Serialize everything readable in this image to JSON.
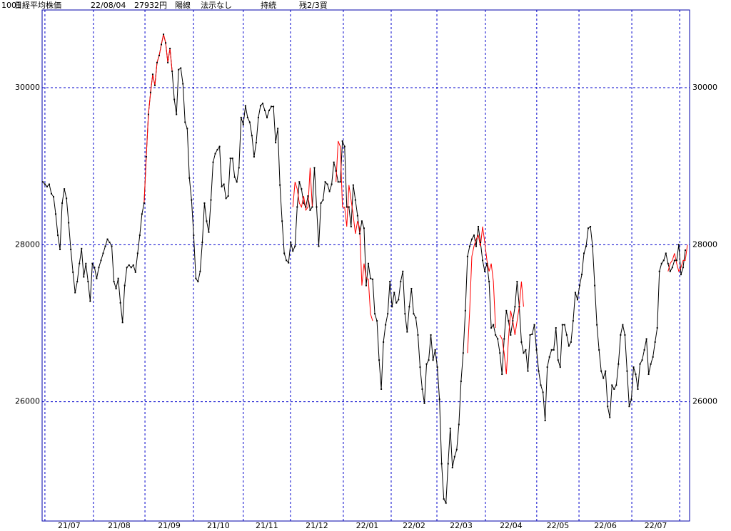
{
  "chart_data": {
    "type": "line",
    "header": {
      "code": "1001",
      "name": "日経平均株価",
      "date": "22/08/04",
      "price": "27932円",
      "candle": "陽線",
      "note": "法示なし",
      "status": "持続",
      "signal": "残2/3買"
    },
    "xlim": [
      -0.3,
      300
    ],
    "ylim": [
      24480,
      30990
    ],
    "yticks": [
      26000,
      28000,
      30000
    ],
    "xticks": [
      {
        "value": 1,
        "label": "21/07"
      },
      {
        "value": 23.5,
        "label": "21/08"
      },
      {
        "value": 47.4,
        "label": "21/09"
      },
      {
        "value": 69.9,
        "label": "21/10"
      },
      {
        "value": 93,
        "label": "21/11"
      },
      {
        "value": 114.9,
        "label": "21/12"
      },
      {
        "value": 139.4,
        "label": "22/01"
      },
      {
        "value": 161.6,
        "label": "22/02"
      },
      {
        "value": 182.8,
        "label": "22/03"
      },
      {
        "value": 205.3,
        "label": "22/04"
      },
      {
        "value": 229.1,
        "label": "22/05"
      },
      {
        "value": 248.7,
        "label": "22/06"
      },
      {
        "value": 273.2,
        "label": "22/07"
      },
      {
        "value": 295.4,
        "label": null
      }
    ],
    "grid": true,
    "grid_color": "#0000cc",
    "frame_color": "#0000aa",
    "series": [
      {
        "color": "#000000",
        "markers": true,
        "values": [
          28800,
          28770,
          28740,
          28770,
          28650,
          28610,
          28390,
          28120,
          27940,
          28530,
          28710,
          28590,
          28280,
          27940,
          27650,
          27390,
          27530,
          27760,
          27950,
          27590,
          27760,
          27530,
          27280,
          27760,
          27710,
          27570,
          27710,
          27800,
          27890,
          27980,
          28070,
          28030,
          27980,
          27530,
          27440,
          27570,
          27260,
          27010,
          27480,
          27710,
          27740,
          27710,
          27740,
          27650,
          27890,
          28120,
          28390,
          28530,
          29120,
          29660,
          29940,
          30170,
          30030,
          30320,
          30410,
          30550,
          30680,
          30570,
          30320,
          30500,
          30210,
          29850,
          29660,
          30230,
          30250,
          30050,
          29560,
          29480,
          28850,
          28570,
          28120,
          27570,
          27530,
          27660,
          28030,
          28530,
          28300,
          28160,
          28570,
          29050,
          29160,
          29210,
          29250,
          28740,
          28770,
          28590,
          28620,
          29100,
          29100,
          28860,
          28800,
          28980,
          29620,
          29530,
          29770,
          29620,
          29560,
          29390,
          29120,
          29300,
          29620,
          29770,
          29800,
          29710,
          29620,
          29710,
          29760,
          29760,
          29300,
          29480,
          28760,
          28300,
          27890,
          27800,
          27770,
          28030,
          27920,
          27980,
          28480,
          28800,
          28710,
          28530,
          28480,
          28620,
          28440,
          28480,
          28980,
          28480,
          27980,
          28530,
          28570,
          28800,
          28770,
          28680,
          28770,
          29050,
          28940,
          28800,
          28800,
          29320,
          29250,
          28480,
          28480,
          28230,
          28760,
          28570,
          28370,
          28140,
          28300,
          28210,
          27480,
          27760,
          27570,
          27560,
          27120,
          27030,
          26530,
          26160,
          26760,
          26980,
          27120,
          27530,
          27210,
          27390,
          27260,
          27300,
          27530,
          27660,
          27120,
          26890,
          27210,
          27440,
          27120,
          27070,
          26850,
          26440,
          26160,
          25980,
          26480,
          26530,
          26850,
          26530,
          26660,
          26440,
          26030,
          25210,
          24760,
          24710,
          25210,
          25660,
          25160,
          25300,
          25390,
          25710,
          26260,
          26620,
          27160,
          27850,
          27980,
          28070,
          28120,
          27980,
          28230,
          28030,
          27800,
          27660,
          27760,
          27530,
          26940,
          26980,
          26850,
          26800,
          26620,
          26350,
          26800,
          27160,
          27030,
          26850,
          27030,
          27210,
          27530,
          27210,
          26760,
          26620,
          26660,
          26390,
          26850,
          26860,
          26980,
          26660,
          26390,
          26210,
          26120,
          25760,
          26440,
          26570,
          26660,
          26660,
          26940,
          26530,
          26440,
          26980,
          26980,
          26850,
          26710,
          26760,
          27030,
          27390,
          27300,
          27480,
          27620,
          27890,
          27980,
          28210,
          28230,
          27980,
          27480,
          26980,
          26660,
          26390,
          26300,
          26390,
          25940,
          25800,
          26210,
          26160,
          26210,
          26480,
          26850,
          26980,
          26850,
          26390,
          25940,
          26030,
          26440,
          26350,
          26160,
          26480,
          26530,
          26660,
          26800,
          26350,
          26480,
          26570,
          26760,
          26940,
          27660,
          27760,
          27800,
          27890,
          27760,
          27660,
          27710,
          27800,
          27800,
          28000,
          27620,
          27710,
          27930
        ]
      },
      {
        "color": "#ff0000",
        "markers": false,
        "values": [
          null,
          null,
          null,
          null,
          null,
          null,
          null,
          null,
          null,
          null,
          null,
          null,
          null,
          null,
          null,
          null,
          null,
          null,
          null,
          null,
          null,
          null,
          null,
          null,
          null,
          null,
          null,
          null,
          null,
          null,
          null,
          null,
          null,
          null,
          null,
          null,
          null,
          null,
          null,
          null,
          null,
          null,
          null,
          null,
          null,
          null,
          null,
          28530,
          29120,
          29660,
          29940,
          30170,
          30030,
          30320,
          30410,
          30550,
          30680,
          30570,
          30320,
          30500,
          30210,
          null,
          null,
          null,
          null,
          null,
          null,
          null,
          null,
          null,
          null,
          null,
          null,
          null,
          null,
          null,
          null,
          null,
          null,
          null,
          null,
          null,
          null,
          null,
          null,
          null,
          null,
          null,
          null,
          null,
          null,
          null,
          null,
          null,
          null,
          null,
          null,
          null,
          null,
          null,
          null,
          null,
          null,
          null,
          null,
          null,
          null,
          null,
          null,
          null,
          null,
          null,
          null,
          null,
          null,
          null,
          28480,
          28800,
          28710,
          28530,
          28480,
          28620,
          28440,
          28480,
          28980,
          28480,
          null,
          null,
          null,
          null,
          null,
          null,
          null,
          null,
          null,
          null,
          28800,
          29320,
          29250,
          28480,
          28480,
          28230,
          28760,
          28570,
          28370,
          28140,
          28300,
          28210,
          27480,
          27760,
          27570,
          27560,
          27120,
          27030,
          null,
          null,
          null,
          null,
          null,
          null,
          null,
          null,
          null,
          null,
          null,
          null,
          null,
          null,
          null,
          null,
          null,
          null,
          null,
          null,
          null,
          null,
          null,
          null,
          null,
          null,
          null,
          null,
          null,
          null,
          null,
          null,
          null,
          null,
          null,
          null,
          null,
          null,
          null,
          null,
          null,
          null,
          null,
          26620,
          27160,
          27850,
          27980,
          28070,
          28120,
          27980,
          28230,
          28030,
          27800,
          27660,
          27760,
          27530,
          26940,
          null,
          26850,
          26800,
          26620,
          26350,
          26800,
          27160,
          27030,
          26850,
          27030,
          27210,
          27530,
          27210,
          null,
          null,
          null,
          null,
          null,
          null,
          null,
          null,
          null,
          null,
          null,
          null,
          null,
          null,
          null,
          null,
          null,
          null,
          null,
          null,
          null,
          null,
          null,
          null,
          null,
          null,
          null,
          null,
          null,
          null,
          null,
          null,
          null,
          null,
          null,
          null,
          null,
          null,
          null,
          null,
          null,
          null,
          null,
          null,
          null,
          null,
          null,
          null,
          null,
          null,
          null,
          null,
          null,
          null,
          null,
          null,
          null,
          null,
          null,
          null,
          null,
          null,
          null,
          null,
          null,
          null,
          27660,
          27760,
          27800,
          27890,
          27760,
          27660,
          27710,
          27800,
          27800,
          28000,
          null,
          null,
          null
        ]
      }
    ]
  }
}
